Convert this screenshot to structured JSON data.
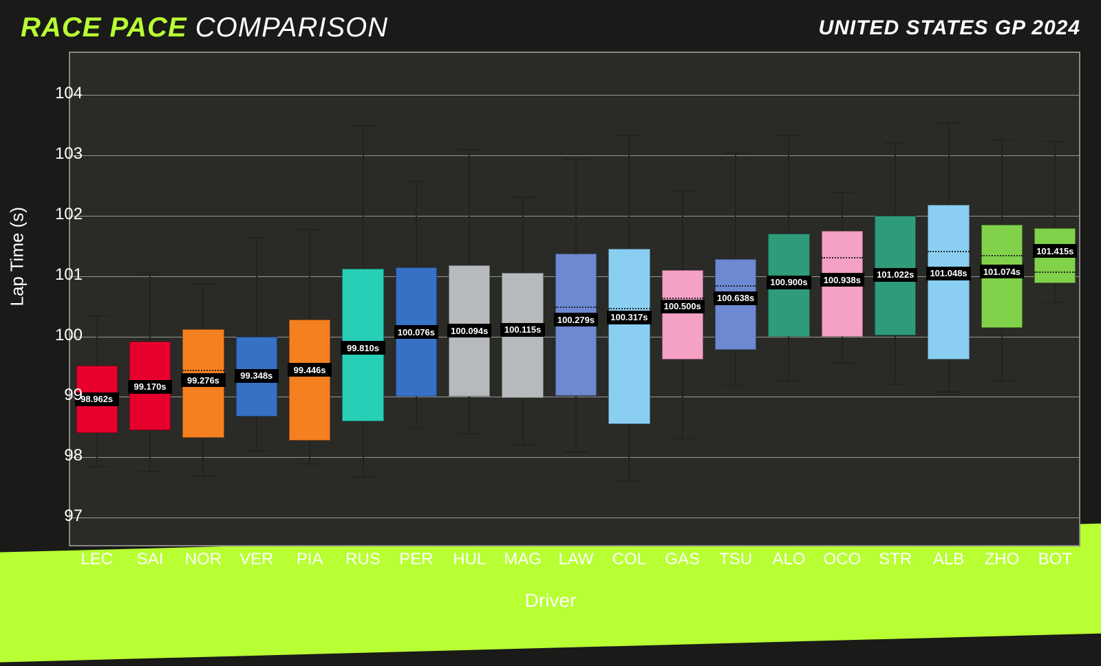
{
  "header": {
    "title_accent": "RACE PACE",
    "title_white": "COMPARISON",
    "event": "UNITED STATES GP 2024"
  },
  "chart": {
    "type": "boxplot",
    "ylabel": "Lap Time (s)",
    "xlabel": "Driver",
    "ylim": [
      96.5,
      104.7
    ],
    "yticks": [
      97,
      98,
      99,
      100,
      101,
      102,
      103,
      104
    ],
    "background_color": "#2a2a26",
    "grid_color": "#999999",
    "accent_color": "#b8ff33",
    "box_width": 0.78,
    "median_fontsize": 13,
    "tick_fontsize": 24,
    "label_fontsize": 26,
    "drivers": [
      {
        "code": "LEC",
        "color": "#e8002d",
        "median": 98.962,
        "mean": 99.0,
        "q1": 98.4,
        "q3": 99.52,
        "lo": 97.85,
        "hi": 100.35
      },
      {
        "code": "SAI",
        "color": "#e8002d",
        "median": 99.17,
        "mean": 99.22,
        "q1": 98.45,
        "q3": 99.92,
        "lo": 97.78,
        "hi": 101.08
      },
      {
        "code": "NOR",
        "color": "#f58020",
        "median": 99.276,
        "mean": 99.45,
        "q1": 98.32,
        "q3": 100.12,
        "lo": 97.7,
        "hi": 100.88
      },
      {
        "code": "VER",
        "color": "#3671c6",
        "median": 99.348,
        "mean": 99.35,
        "q1": 98.68,
        "q3": 100.0,
        "lo": 98.12,
        "hi": 101.65
      },
      {
        "code": "PIA",
        "color": "#f58020",
        "median": 99.446,
        "mean": 99.5,
        "q1": 98.28,
        "q3": 100.28,
        "lo": 97.9,
        "hi": 101.78
      },
      {
        "code": "RUS",
        "color": "#27cfb7",
        "median": 99.81,
        "mean": 99.88,
        "q1": 98.6,
        "q3": 101.12,
        "lo": 97.68,
        "hi": 103.5
      },
      {
        "code": "PER",
        "color": "#3671c6",
        "median": 100.076,
        "mean": 100.08,
        "q1": 99.0,
        "q3": 101.15,
        "lo": 98.5,
        "hi": 102.58
      },
      {
        "code": "HUL",
        "color": "#b6babd",
        "median": 100.094,
        "mean": 100.1,
        "q1": 99.0,
        "q3": 101.18,
        "lo": 98.4,
        "hi": 103.1
      },
      {
        "code": "MAG",
        "color": "#b6babd",
        "median": 100.115,
        "mean": 100.22,
        "q1": 98.98,
        "q3": 101.05,
        "lo": 98.22,
        "hi": 102.32
      },
      {
        "code": "LAW",
        "color": "#6c89d1",
        "median": 100.279,
        "mean": 100.5,
        "q1": 99.02,
        "q3": 101.38,
        "lo": 98.1,
        "hi": 102.95
      },
      {
        "code": "COL",
        "color": "#8acff2",
        "median": 100.317,
        "mean": 100.48,
        "q1": 98.55,
        "q3": 101.45,
        "lo": 97.62,
        "hi": 103.35
      },
      {
        "code": "GAS",
        "color": "#f5a1c5",
        "median": 100.5,
        "mean": 100.65,
        "q1": 99.62,
        "q3": 101.1,
        "lo": 98.32,
        "hi": 102.42
      },
      {
        "code": "TSU",
        "color": "#6c89d1",
        "median": 100.638,
        "mean": 100.85,
        "q1": 99.78,
        "q3": 101.28,
        "lo": 99.2,
        "hi": 103.05
      },
      {
        "code": "ALO",
        "color": "#2f9b7a",
        "median": 100.9,
        "mean": 100.92,
        "q1": 100.0,
        "q3": 101.7,
        "lo": 99.28,
        "hi": 103.35
      },
      {
        "code": "OCO",
        "color": "#f5a1c5",
        "median": 100.938,
        "mean": 101.32,
        "q1": 100.0,
        "q3": 101.75,
        "lo": 99.58,
        "hi": 102.4
      },
      {
        "code": "STR",
        "color": "#2f9b7a",
        "median": 101.022,
        "mean": 101.05,
        "q1": 100.02,
        "q3": 102.0,
        "lo": 99.22,
        "hi": 103.22
      },
      {
        "code": "ALB",
        "color": "#8acff2",
        "median": 101.048,
        "mean": 101.42,
        "q1": 99.62,
        "q3": 102.18,
        "lo": 99.1,
        "hi": 103.55
      },
      {
        "code": "ZHO",
        "color": "#81d14a",
        "median": 101.074,
        "mean": 101.35,
        "q1": 100.15,
        "q3": 101.85,
        "lo": 99.28,
        "hi": 103.28
      },
      {
        "code": "BOT",
        "color": "#81d14a",
        "median": 101.415,
        "mean": 101.08,
        "q1": 100.88,
        "q3": 101.8,
        "lo": 100.58,
        "hi": 103.24
      }
    ]
  }
}
